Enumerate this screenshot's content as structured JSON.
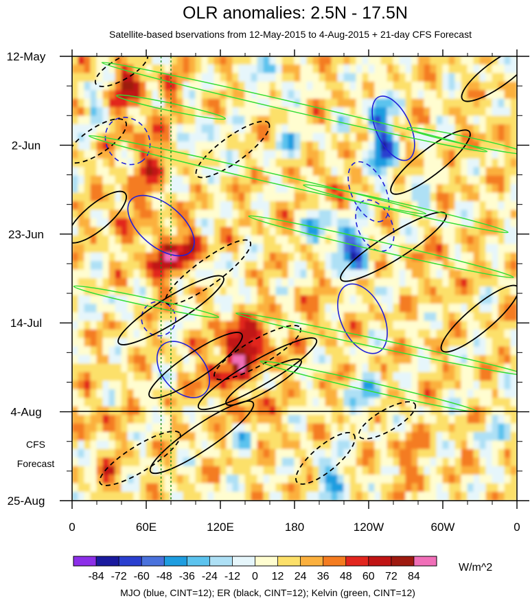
{
  "chart_data": {
    "type": "heatmap",
    "title": "OLR anomalies: 2.5N - 17.5N",
    "subtitle": "Satellite-based bservations from 12-May-2015 to 4-Aug-2015 + 21-day CFS Forecast",
    "x_tick_labels": [
      "0",
      "60E",
      "120E",
      "180",
      "120W",
      "60W",
      "0"
    ],
    "x_ticks_deg_east": [
      0,
      60,
      120,
      180,
      240,
      300,
      360
    ],
    "xlim": [
      0,
      360
    ],
    "y_tick_labels": [
      "12-May",
      "2-Jun",
      "23-Jun",
      "14-Jul",
      "4-Aug",
      "25-Aug"
    ],
    "y_ticks_day": [
      0,
      21,
      42,
      63,
      84,
      105
    ],
    "ylim": [
      0,
      105
    ],
    "forecast_start_label": "4-Aug",
    "forecast_label_lines": [
      "CFS",
      "Forecast"
    ],
    "colorbar": {
      "levels": [
        -84,
        -72,
        -60,
        -48,
        -36,
        -24,
        -12,
        0,
        12,
        24,
        36,
        48,
        60,
        72,
        84
      ],
      "tick_labels": [
        "-84",
        "-72",
        "-60",
        "-48",
        "-36",
        "-24",
        "-12",
        "0",
        "12",
        "24",
        "36",
        "48",
        "60",
        "72",
        "84"
      ],
      "colors": [
        "#8c2fe8",
        "#1a1a9e",
        "#2a3fcf",
        "#4a72dc",
        "#1e9de0",
        "#5cc3ee",
        "#aee0f5",
        "#e6f6fb",
        "#fffdd0",
        "#fce06a",
        "#fbb03e",
        "#f47c20",
        "#e2261e",
        "#c01414",
        "#9e1a10",
        "#f06fb8"
      ],
      "units": "W/m^2"
    },
    "footnote": "MJO (blue, CINT=12); ER (black, CINT=12); Kelvin (green, CINT=12)",
    "overlays": {
      "mjo_color": "#2020d8",
      "er_color": "#000000",
      "kelvin_color": "#33dd33",
      "vertical_markers_deg_east": [
        72,
        80
      ],
      "vertical_marker_color": "#1a8a1a"
    }
  }
}
